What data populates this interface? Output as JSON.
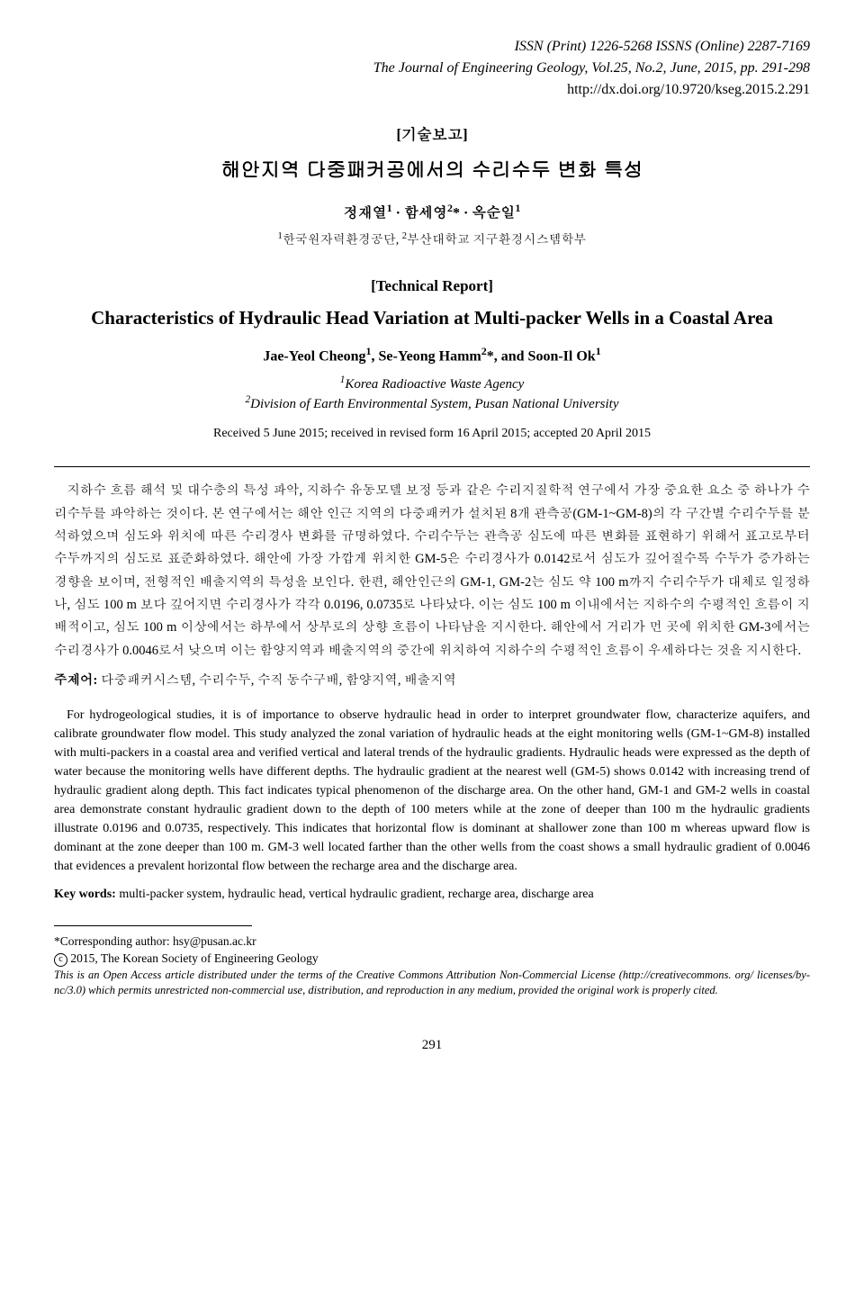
{
  "header": {
    "issn_line": "ISSN (Print) 1226-5268   ISSNS (Online) 2287-7169",
    "journal_line": "The Journal of Engineering Geology, Vol.25, No.2, June, 2015, pp. 291-298",
    "doi": "http://dx.doi.org/10.9720/kseg.2015.2.291"
  },
  "section_label_kr": "[기술보고]",
  "title_kr": "해안지역 다중패커공에서의 수리수두 변화 특성",
  "authors_kr_html": "정재열<sup>1</sup> · 함세영<sup>2</sup>* · 옥순일<sup>1</sup>",
  "affil_kr_html": "<sup>1</sup>한국원자력환경공단, <sup>2</sup>부산대학교 지구환경시스템학부",
  "section_label_en": "[Technical Report]",
  "title_en": "Characteristics of Hydraulic Head Variation at Multi-packer Wells in a Coastal Area",
  "authors_en_html": "Jae-Yeol Cheong<sup>1</sup>, Se-Yeong Hamm<sup>2</sup>*, and Soon-Il Ok<sup>1</sup>",
  "affil_en_html": "<sup>1</sup>Korea Radioactive Waste Agency<br><sup>2</sup>Division of Earth Environmental System, Pusan National University",
  "dates": "Received 5 June 2015; received in revised form 16 April 2015; accepted 20 April 2015",
  "abstract_kr": "지하수 흐름 해석 및 대수층의 특성 파악, 지하수 유동모델 보정 등과 같은 수리지질학적 연구에서 가장 중요한 요소 중 하나가 수리수두를 파악하는 것이다. 본 연구에서는 해안 인근 지역의 다중패커가 설치된 8개 관측공(GM-1~GM-8)의 각 구간별 수리수두를 분석하였으며 심도와 위치에 따른 수리경사 변화를 규명하였다. 수리수두는 관측공 심도에 따른 변화를 표현하기 위해서 표고로부터 수두까지의 심도로 표준화하였다. 해안에 가장 가깝게 위치한 GM-5은 수리경사가 0.0142로서 심도가 깊어질수록 수두가 증가하는 경향을 보이며, 전형적인 배출지역의 특성을 보인다. 한편, 해안인근의 GM-1, GM-2는 심도 약 100 m까지 수리수두가 대체로 일정하나, 심도 100 m 보다 깊어지면 수리경사가 각각 0.0196, 0.0735로 나타났다. 이는 심도 100 m 이내에서는 지하수의 수평적인 흐름이 지배적이고, 심도 100 m 이상에서는 하부에서 상부로의 상향 흐름이 나타남을 지시한다. 해안에서 거리가 먼 곳에 위치한 GM-3에서는 수리경사가 0.0046로서 낮으며 이는 함양지역과 배출지역의 중간에 위치하여 지하수의 수평적인 흐름이 우세하다는 것을 지시한다.",
  "keywords_kr_label": "주제어:",
  "keywords_kr": "다중패커시스템, 수리수두, 수직 동수구배, 함양지역, 배출지역",
  "abstract_en": "For hydrogeological studies, it is of importance to observe hydraulic head in order to interpret groundwater flow, characterize aquifers, and calibrate groundwater flow model. This study analyzed the zonal variation of hydraulic heads at the eight monitoring wells (GM-1~GM-8) installed with multi-packers in a coastal area and verified vertical and lateral trends of the hydraulic gradients. Hydraulic heads were expressed as the depth of water because the monitoring wells have different depths. The hydraulic gradient at the nearest well (GM-5) shows 0.0142 with increasing trend of hydraulic gradient along depth. This fact indicates typical phenomenon of the discharge area. On the other hand, GM-1 and GM-2 wells in coastal area demonstrate constant hydraulic gradient down to the depth of 100 meters while at the zone of deeper than 100 m the hydraulic gradients illustrate 0.0196 and 0.0735, respectively. This indicates that horizontal flow is dominant at shallower zone than 100 m whereas upward flow is dominant at the zone deeper than 100 m. GM-3 well located farther than the other wells from the coast shows a small hydraulic gradient of 0.0046 that evidences a prevalent horizontal flow between the recharge area and the discharge area.",
  "keywords_en_label": "Key words:",
  "keywords_en": "multi-packer system, hydraulic head, vertical hydraulic gradient, recharge area, discharge area",
  "footer": {
    "corresponding": "*Corresponding author: hsy@pusan.ac.kr",
    "copyright": " 2015, The Korean Society of Engineering Geology",
    "license": "This is an Open Access article distributed under the terms of the Creative Commons Attribution Non-Commercial License (http://creativecommons. org/ licenses/by-nc/3.0) which permits unrestricted non-commercial use, distribution, and reproduction in any medium, provided the original work is properly cited."
  },
  "page_number": "291"
}
